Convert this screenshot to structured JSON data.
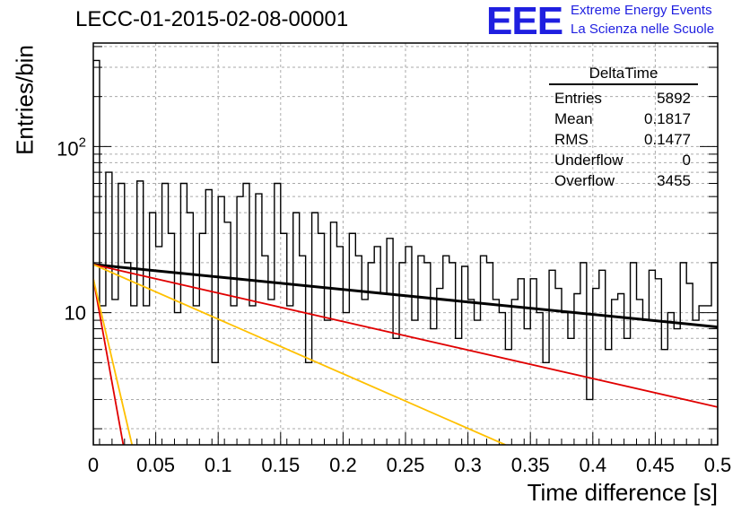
{
  "chart_data": {
    "type": "histogram",
    "title": "LECC-01-2015-02-08-00001",
    "xlabel": "Time difference [s]",
    "ylabel": "Entries/bin",
    "xlim": [
      0,
      0.5
    ],
    "ylim": [
      1.6,
      420
    ],
    "yscale": "log",
    "grid": true,
    "x_ticks": [
      "0",
      "0.05",
      "0.1",
      "0.15",
      "0.2",
      "0.25",
      "0.3",
      "0.35",
      "0.4",
      "0.45",
      "0.5"
    ],
    "y_ticks": [
      "10",
      "10^2"
    ],
    "bin_width": 0.005,
    "bin_values": [
      330,
      11,
      70,
      12,
      60,
      20,
      11,
      62,
      11,
      40,
      25,
      60,
      30,
      10,
      60,
      40,
      11,
      30,
      55,
      5,
      50,
      35,
      11,
      50,
      60,
      11,
      52,
      22,
      12,
      60,
      30,
      11,
      40,
      22,
      5,
      40,
      30,
      9,
      35,
      25,
      10,
      30,
      22,
      12,
      20,
      25,
      13,
      28,
      7,
      20,
      25,
      9,
      22,
      20,
      8,
      14,
      22,
      20,
      7,
      19,
      12,
      9,
      22,
      20,
      12,
      10,
      6,
      12,
      16,
      8,
      16,
      10,
      5,
      18,
      14,
      10,
      7,
      13,
      20,
      3,
      14,
      18,
      6,
      12,
      13,
      7,
      20,
      12,
      9,
      18,
      16,
      6,
      10,
      8,
      20,
      15,
      9,
      11,
      11,
      20
    ],
    "fits": [
      {
        "color": "#000000",
        "x": [
          0,
          0.5
        ],
        "y": [
          19.5,
          8.2
        ]
      },
      {
        "color": "#e00000",
        "x": [
          0,
          0.5
        ],
        "y": [
          19.5,
          2.7
        ]
      },
      {
        "color": "#ffc000",
        "x": [
          0,
          0.33
        ],
        "y": [
          19.5,
          1.6
        ]
      },
      {
        "color": "#e00000",
        "x": [
          0,
          0.024
        ],
        "y": [
          16,
          1.6
        ]
      },
      {
        "color": "#ffc000",
        "x": [
          0,
          0.031
        ],
        "y": [
          16,
          1.6
        ]
      }
    ]
  },
  "stats": {
    "name": "DeltaTime",
    "rows": [
      {
        "label": "Entries",
        "value": "5892"
      },
      {
        "label": "Mean",
        "value": "0.1817"
      },
      {
        "label": "RMS",
        "value": "0.1477"
      },
      {
        "label": "Underflow",
        "value": "0"
      },
      {
        "label": "Overflow",
        "value": "3455"
      }
    ]
  },
  "logo": {
    "mark": "EEE",
    "line1": "Extreme Energy Events",
    "line2": "La Scienza nelle Scuole"
  }
}
